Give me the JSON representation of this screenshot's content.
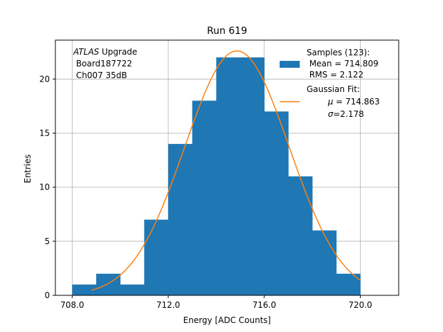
{
  "chart_data": {
    "type": "bar",
    "title": "Run 619",
    "xlabel": "Energy [ADC Counts]",
    "ylabel": "Entries",
    "xlim": [
      707.3,
      721.6
    ],
    "ylim": [
      0,
      23.6
    ],
    "xticks": [
      708,
      712,
      716,
      720
    ],
    "xtick_labels": [
      "708.0",
      "712.0",
      "716.0",
      "720.0"
    ],
    "yticks": [
      0,
      5,
      10,
      15,
      20
    ],
    "ytick_labels": [
      "0",
      "5",
      "10",
      "15",
      "20"
    ],
    "grid": true,
    "bin_edges": [
      708,
      709,
      710,
      711,
      712,
      713,
      714,
      715,
      716,
      717,
      718,
      719,
      720
    ],
    "counts": [
      1,
      2,
      1,
      7,
      14,
      18,
      22,
      22,
      17,
      11,
      6,
      2
    ],
    "fit": {
      "mu": 714.863,
      "sigma": 2.178,
      "amplitude": 22.6,
      "x_range": [
        708.8,
        720.0
      ]
    },
    "colors": {
      "histogram": "#1f77b4",
      "fit": "#ff7f0e",
      "grid": "#b0b0b0"
    },
    "annotation": {
      "experiment": "ATLAS",
      "experiment_suffix": " Upgrade",
      "line2": " Board187722",
      "line3": " Ch007 35dB"
    },
    "legend": {
      "position": "top-right",
      "samples_line1": "Samples (123):",
      "samples_line2": " Mean = 714.809",
      "samples_line3": " RMS = 2.122",
      "fit_line1": "Gaussian Fit:",
      "fit_mu_symbol": "μ",
      "fit_mu_text": " = 714.863",
      "fit_sigma_symbol": "σ",
      "fit_sigma_text": "=2.178"
    }
  }
}
